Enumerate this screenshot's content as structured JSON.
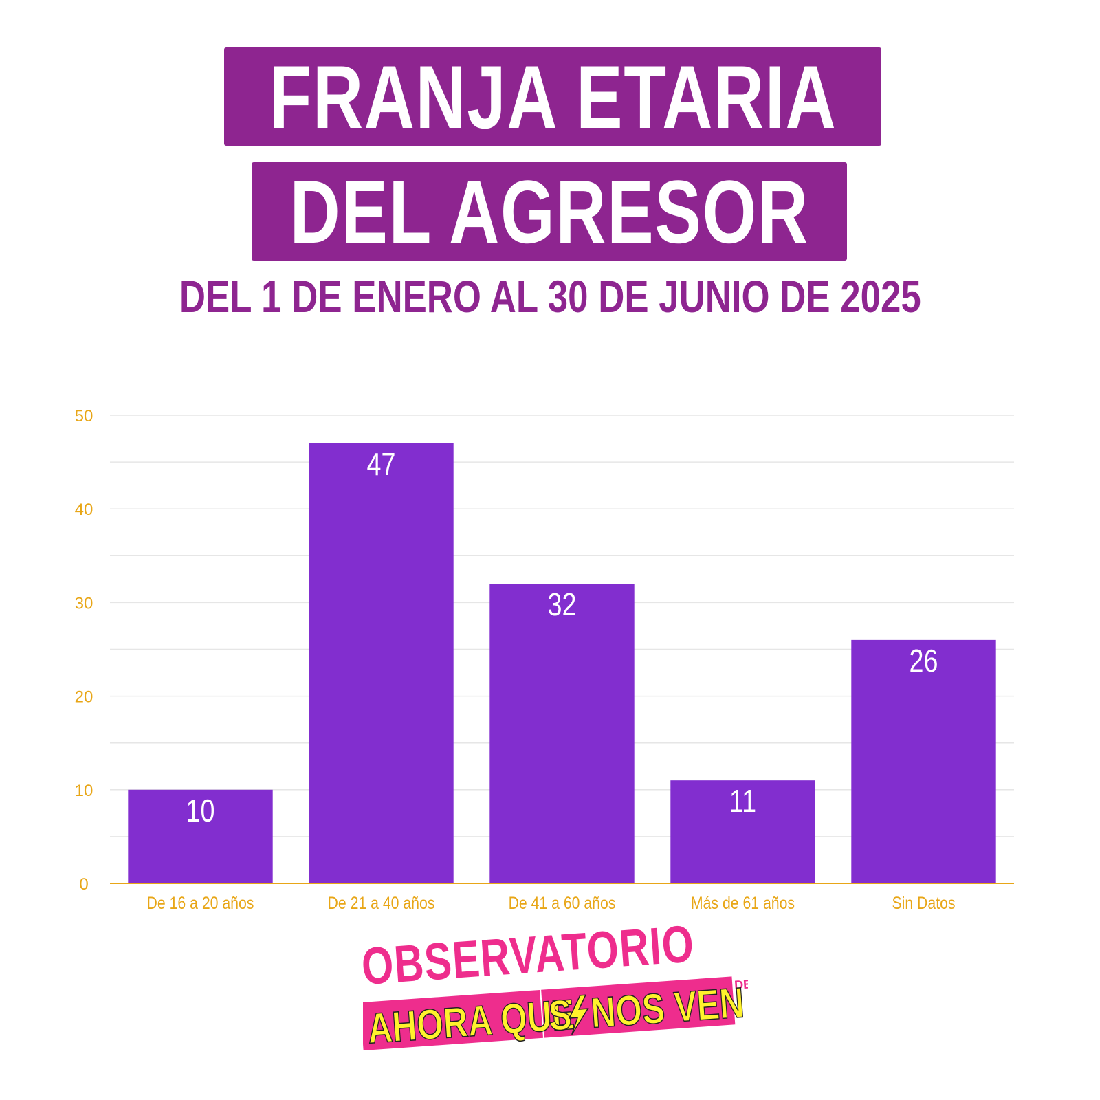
{
  "title_line1": "FRANJA ETARIA",
  "title_line2": "DEL AGRESOR",
  "subtitle": "DEL 1 DE ENERO AL 30 DE JUNIO DE 2025",
  "colors": {
    "title_bg": "#8e2590",
    "bar": "#822ecf",
    "axis_text": "#e8a617",
    "logo_pink": "#ee2d8d",
    "logo_yellow": "#fff22c"
  },
  "chart_data": {
    "type": "bar",
    "categories": [
      "De 16 a 20 años",
      "De 21 a 40 años",
      "De 41 a 60 años",
      "Más de 61 años",
      "Sin Datos"
    ],
    "values": [
      10,
      47,
      32,
      11,
      26
    ],
    "yticks": [
      0,
      10,
      20,
      30,
      40,
      50
    ],
    "ylim": [
      0,
      50
    ],
    "grid": true,
    "data_labels": true
  },
  "logo": {
    "line1": "OBSERVATORIO",
    "line2": "DE LAS VIOLENCIAS DE GÉNERO",
    "line3a": "AHORA QUE",
    "line3b": "S",
    "line3c": "NOS VEN"
  }
}
